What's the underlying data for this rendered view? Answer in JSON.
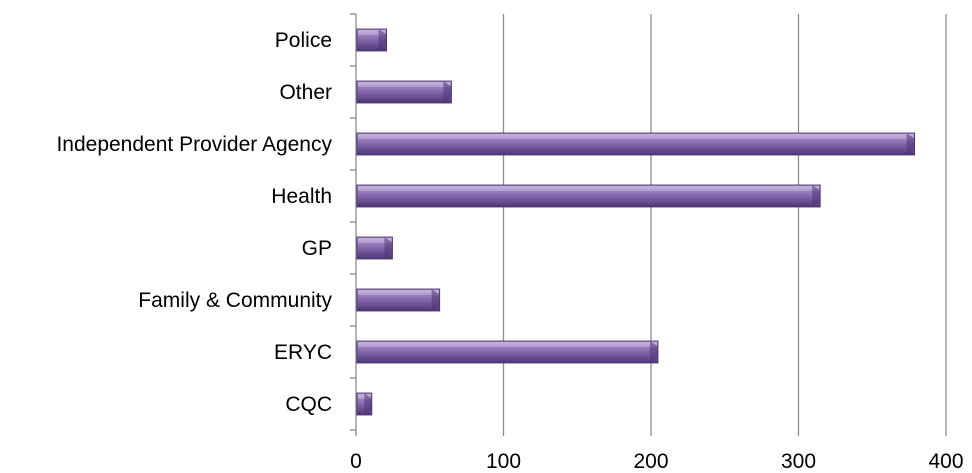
{
  "chart_data": {
    "type": "bar",
    "orientation": "horizontal",
    "categories": [
      "Police",
      "Other",
      "Independent Provider Agency",
      "Health ",
      "GP",
      "Family & Community",
      "ERYC",
      "CQC"
    ],
    "values": [
      20,
      64,
      378,
      314,
      24,
      56,
      204,
      10
    ],
    "xlim": [
      0,
      400
    ],
    "x_ticks": [
      0,
      100,
      200,
      300,
      400
    ],
    "x_tick_labels": [
      "0",
      "100",
      "200",
      "300",
      "400"
    ],
    "title": "",
    "xlabel": "",
    "ylabel": "",
    "grid": "vertical",
    "legend": "none",
    "colors": {
      "bar_fill": "#8a6bb0",
      "bar_top": "#b9a3d4",
      "bar_shadow": "#4e3576",
      "gridline": "#8c8c8c",
      "axis": "#8c8c8c"
    }
  }
}
